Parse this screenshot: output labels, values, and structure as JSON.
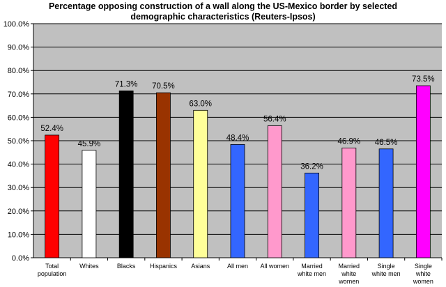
{
  "chart_data": {
    "type": "bar",
    "title_lines": [
      "Percentage opposing construction of a wall along the US-Mexico border by selected",
      "demographic characteristics (Reuters-Ipsos)"
    ],
    "categories": [
      [
        "Total",
        "population"
      ],
      [
        "Whites"
      ],
      [
        "Blacks"
      ],
      [
        "Hispanics"
      ],
      [
        "Asians"
      ],
      [
        "All men"
      ],
      [
        "All women"
      ],
      [
        "Married",
        "white men"
      ],
      [
        "Married",
        "white",
        "women"
      ],
      [
        "Single",
        "white men"
      ],
      [
        "Single",
        "white",
        "women"
      ]
    ],
    "values": [
      52.4,
      45.9,
      71.3,
      70.5,
      63.0,
      48.4,
      56.4,
      36.2,
      46.9,
      46.5,
      73.5
    ],
    "data_labels": [
      "52.4%",
      "45.9%",
      "71.3%",
      "70.5%",
      "63.0%",
      "48.4%",
      "56.4%",
      "36.2%",
      "46.9%",
      "46.5%",
      "73.5%"
    ],
    "colors": [
      "#ff0000",
      "#ffffff",
      "#000000",
      "#993300",
      "#ffff99",
      "#3366ff",
      "#ff99cc",
      "#3366ff",
      "#ff99cc",
      "#3366ff",
      "#ff00ff"
    ],
    "y_ticks": [
      "0.0%",
      "10.0%",
      "20.0%",
      "30.0%",
      "40.0%",
      "50.0%",
      "60.0%",
      "70.0%",
      "80.0%",
      "90.0%",
      "100.0%"
    ],
    "ylim": [
      0,
      100
    ],
    "grid": true,
    "plot_background": "#c0c0c0",
    "xlabel": "",
    "ylabel": ""
  }
}
